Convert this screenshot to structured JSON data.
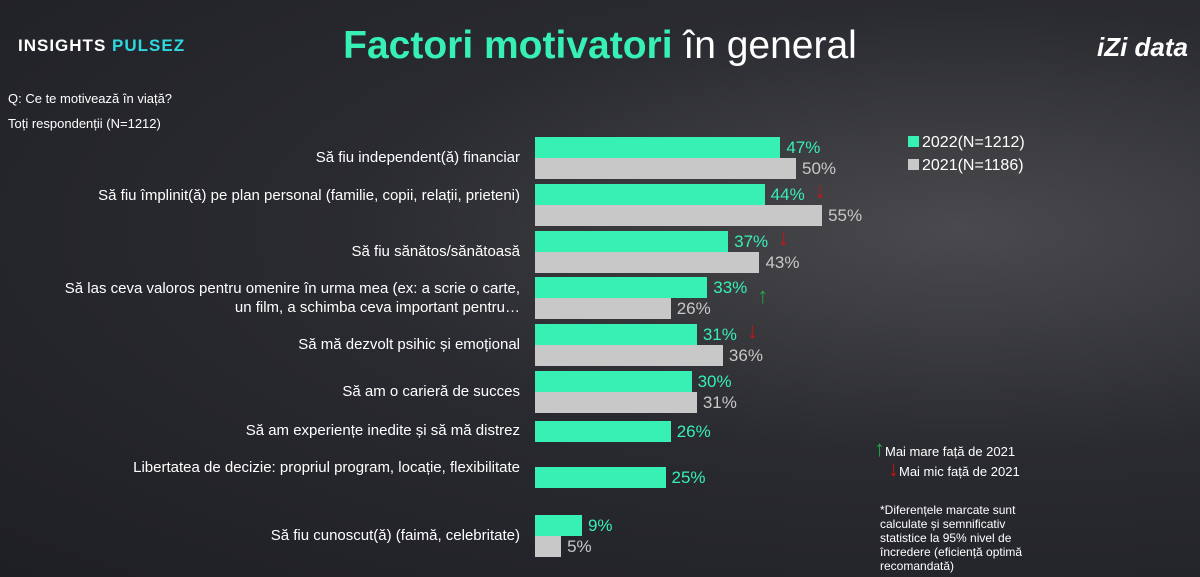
{
  "brand": {
    "part1": "INSIGHTS",
    "part2": "PULSEZ"
  },
  "title": {
    "highlight": "Factori motivatori",
    "rest": " în general"
  },
  "logo": {
    "text": "iZi data"
  },
  "question": "Q: Ce te motivează în viață?",
  "base": "Toți respondenții (N=1212)",
  "colors": {
    "y2022": "#37f0b4",
    "y2021": "#c8c8c8",
    "up": "#1fa84a",
    "down": "#d01010"
  },
  "chart_data": {
    "type": "bar",
    "orientation": "horizontal",
    "categories": [
      "Să fiu independent(ă) financiar",
      "Să fiu împlinit(ă) pe plan personal (familie, copii, relații, prieteni)",
      "Să fiu sănătos/sănătoasă",
      "Să las ceva valoros pentru omenire în urma mea (ex: a scrie o carte, un film, a schimba ceva important pentru…",
      "Să mă dezvolt psihic și emoțional",
      "Să am o carieră de succes",
      "Să am experiențe inedite și să mă distrez",
      "Libertatea de decizie: propriul program, locație, flexibilitate",
      "Să fiu cunoscut(ă) (faimă, celebritate)"
    ],
    "series": [
      {
        "name": "2022(N=1212)",
        "values": [
          47,
          44,
          37,
          33,
          31,
          30,
          26,
          25,
          9
        ]
      },
      {
        "name": "2021(N=1186)",
        "values": [
          50,
          55,
          43,
          26,
          36,
          31,
          null,
          null,
          5
        ]
      }
    ],
    "significance": [
      null,
      "down",
      "down",
      "up",
      "down",
      null,
      null,
      null,
      null
    ],
    "unit": "%",
    "legend": "top-right"
  },
  "legend_sig": {
    "up": "Mai mare față de 2021",
    "down": "Mai mic față de 2021"
  },
  "footnote": "*Diferențele marcate sunt calculate și semnificativ statistice la 95% nivel de încredere (eficiență optimă recomandată)"
}
